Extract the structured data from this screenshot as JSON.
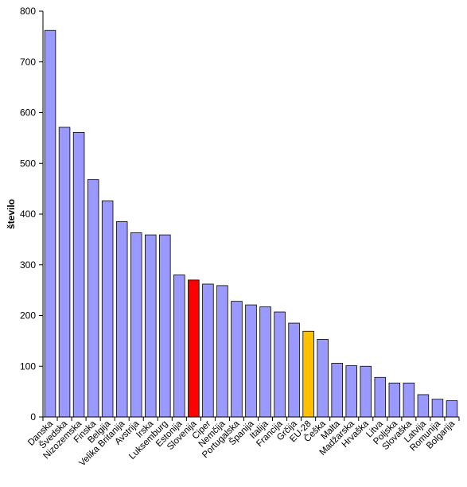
{
  "colors": {
    "default_bar": "#9999ff",
    "highlight_slovenia": "#ff0000",
    "highlight_eu": "#ffc000",
    "bar_stroke": "#000000",
    "axis": "#000000",
    "background": "#ffffff"
  },
  "chart_data": {
    "type": "bar",
    "title": "",
    "xlabel": "",
    "ylabel": "število",
    "ylim": [
      0,
      800
    ],
    "yticks": [
      0,
      100,
      200,
      300,
      400,
      500,
      600,
      700,
      800
    ],
    "grid": false,
    "legend": "none",
    "categories": [
      "Danska",
      "Švedska",
      "Nizozemska",
      "Finska",
      "Belgija",
      "Velika Britanija",
      "Avstrija",
      "Irska",
      "Luksemburg",
      "Estonija",
      "Slovenija",
      "Ciper",
      "Nemčija",
      "Portugalska",
      "Španija",
      "Italija",
      "Francija",
      "Grčija",
      "EU-28",
      "Češka",
      "Malta",
      "Madžarska",
      "Hrvaška",
      "Litva",
      "Poljska",
      "Slovaška",
      "Latvija",
      "Romunija",
      "Bolgarija"
    ],
    "values": [
      762,
      571,
      561,
      468,
      426,
      385,
      363,
      359,
      359,
      280,
      270,
      262,
      259,
      228,
      221,
      217,
      207,
      185,
      169,
      153,
      106,
      101,
      100,
      78,
      67,
      67,
      44,
      35,
      32
    ],
    "highlights": {
      "Slovenija": "highlight_slovenia",
      "EU-28": "highlight_eu"
    }
  }
}
